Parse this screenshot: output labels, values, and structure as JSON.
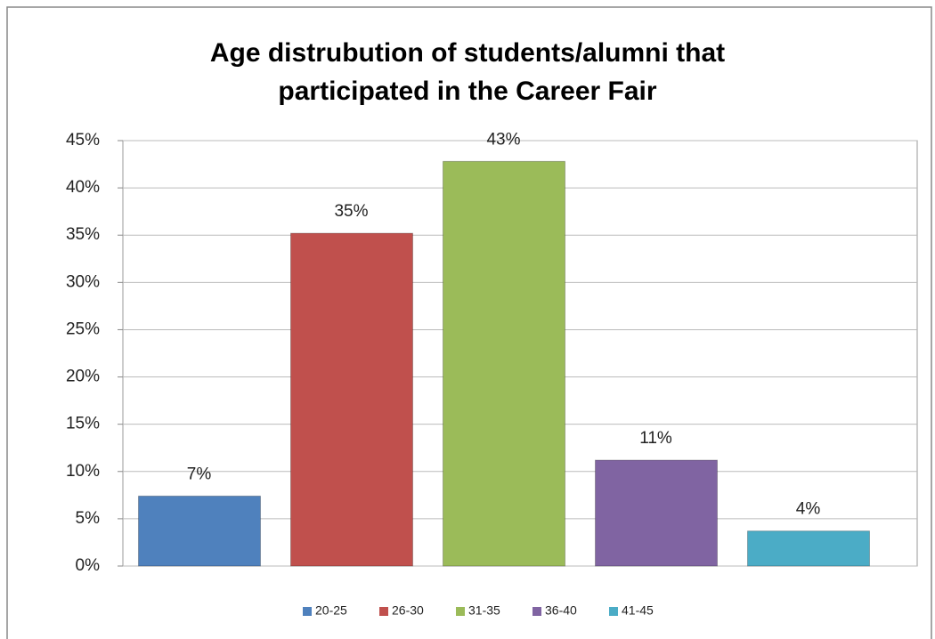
{
  "chart_data": {
    "type": "bar",
    "title": "Age distrubution of students/alumni that participated in the Career Fair",
    "categories": [
      "20-25",
      "26-30",
      "31-35",
      "36-40",
      "41-45"
    ],
    "values": [
      7.4,
      35.2,
      42.8,
      11.2,
      3.7
    ],
    "value_labels": [
      "7%",
      "35%",
      "43%",
      "11%",
      "4%"
    ],
    "colors": [
      "#4f81bd",
      "#c0504d",
      "#9bbb59",
      "#8064a2",
      "#4bacc6"
    ],
    "ylim": [
      0,
      45
    ],
    "yticks": [
      {
        "value": 0,
        "label": "0%"
      },
      {
        "value": 5,
        "label": "5%"
      },
      {
        "value": 10,
        "label": "10%"
      },
      {
        "value": 15,
        "label": "15%"
      },
      {
        "value": 20,
        "label": "20%"
      },
      {
        "value": 25,
        "label": "25%"
      },
      {
        "value": 30,
        "label": "30%"
      },
      {
        "value": 35,
        "label": "35%"
      },
      {
        "value": 40,
        "label": "40%"
      },
      {
        "value": 45,
        "label": "45%"
      }
    ],
    "grid": true,
    "legend": "bottom"
  }
}
